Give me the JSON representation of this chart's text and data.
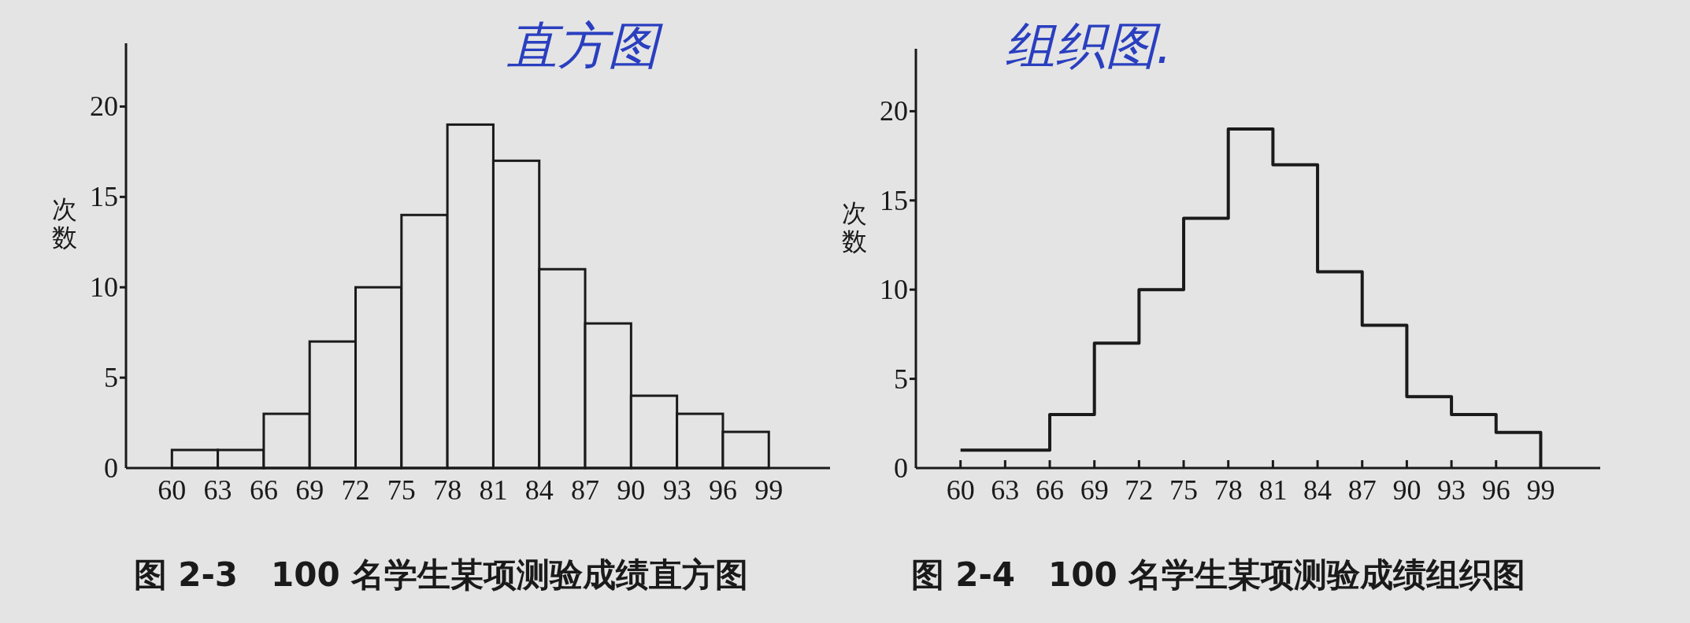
{
  "chart_data": [
    {
      "type": "histogram",
      "title": "图 2-3　100 名学生某项测验成绩直方图",
      "ylabel": "次数",
      "annotations": [
        "直方图"
      ],
      "bins": [
        60,
        63,
        66,
        69,
        72,
        75,
        78,
        81,
        84,
        87,
        90,
        93,
        96,
        99
      ],
      "values": [
        1,
        1,
        3,
        7,
        10,
        14,
        19,
        17,
        11,
        8,
        4,
        3,
        2
      ],
      "color": "#1a1a1a",
      "xlim": [
        57,
        103
      ],
      "ylim": [
        0,
        23.5
      ],
      "xticks": [
        60,
        63,
        66,
        69,
        72,
        75,
        78,
        81,
        84,
        87,
        90,
        93,
        96,
        99
      ],
      "yticks": [
        0,
        5,
        10,
        15,
        20
      ]
    },
    {
      "type": "step",
      "title": "图 2-4　100 名学生某项测验成绩组织图",
      "ylabel": "次数",
      "annotations": [
        "组织图."
      ],
      "x": [
        60,
        63,
        66,
        69,
        72,
        75,
        78,
        81,
        84,
        87,
        90,
        93,
        96,
        99
      ],
      "values": [
        1,
        1,
        3,
        7,
        10,
        14,
        19,
        17,
        11,
        8,
        4,
        3,
        2,
        0
      ],
      "color": "#1a1a1a",
      "xlim": [
        57,
        103
      ],
      "ylim": [
        0,
        23.5
      ],
      "xticks": [
        60,
        63,
        66,
        69,
        72,
        75,
        78,
        81,
        84,
        87,
        90,
        93,
        96,
        99
      ],
      "yticks": [
        0,
        5,
        10,
        15,
        20
      ]
    }
  ]
}
